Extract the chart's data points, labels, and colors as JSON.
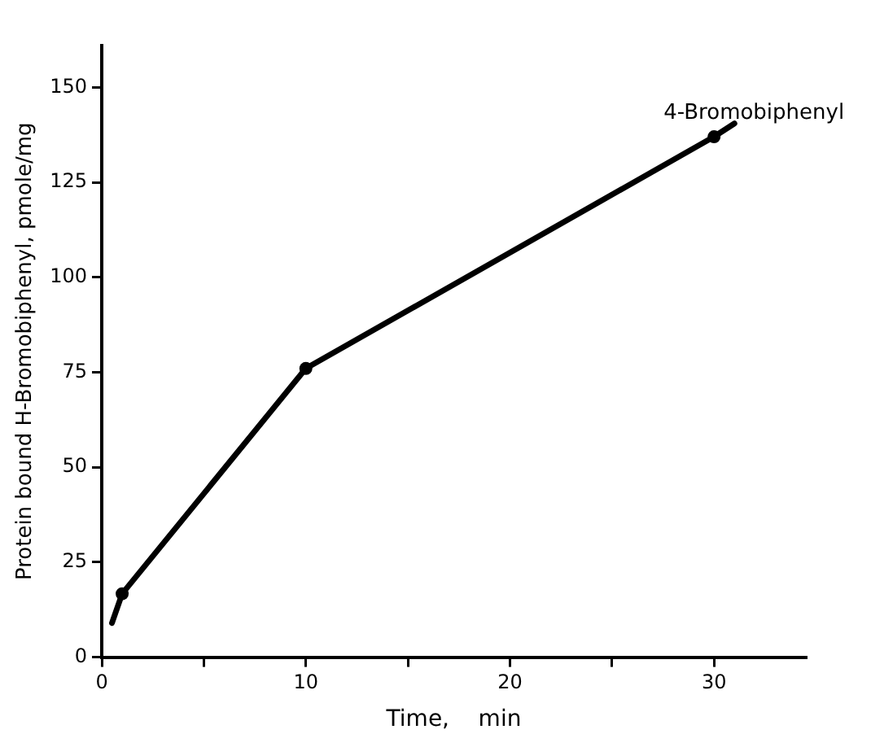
{
  "chart_data": {
    "type": "line",
    "xlabel": "Time,    min",
    "ylabel": "Protein bound H-Bromobiphenyl, pmole/mg",
    "series": [
      {
        "name": "4-Bromobiphenyl",
        "color": "#000000",
        "marker": "circle",
        "x": [
          1,
          10,
          30
        ],
        "values": [
          16.7,
          76,
          137
        ]
      },
      {
        "color": "#000000",
        "type": "line",
        "marker": "none",
        "x": [
          0.5,
          1
        ],
        "values": [
          9,
          16.7
        ]
      },
      {
        "color": "#000000",
        "type": "line",
        "marker": "none",
        "x": [
          30,
          31
        ],
        "values": [
          137,
          140.5
        ]
      }
    ],
    "xlim": [
      0,
      34.5
    ],
    "ylim": [
      0,
      161
    ],
    "xticks": [
      0,
      {
        "value": 5,
        "label": null
      },
      10,
      {
        "value": 15,
        "label": null
      },
      20,
      {
        "value": 25,
        "label": null
      },
      30
    ],
    "yticks": [
      0,
      25,
      50,
      75,
      100,
      125,
      150
    ],
    "grid": false,
    "legend": false
  }
}
